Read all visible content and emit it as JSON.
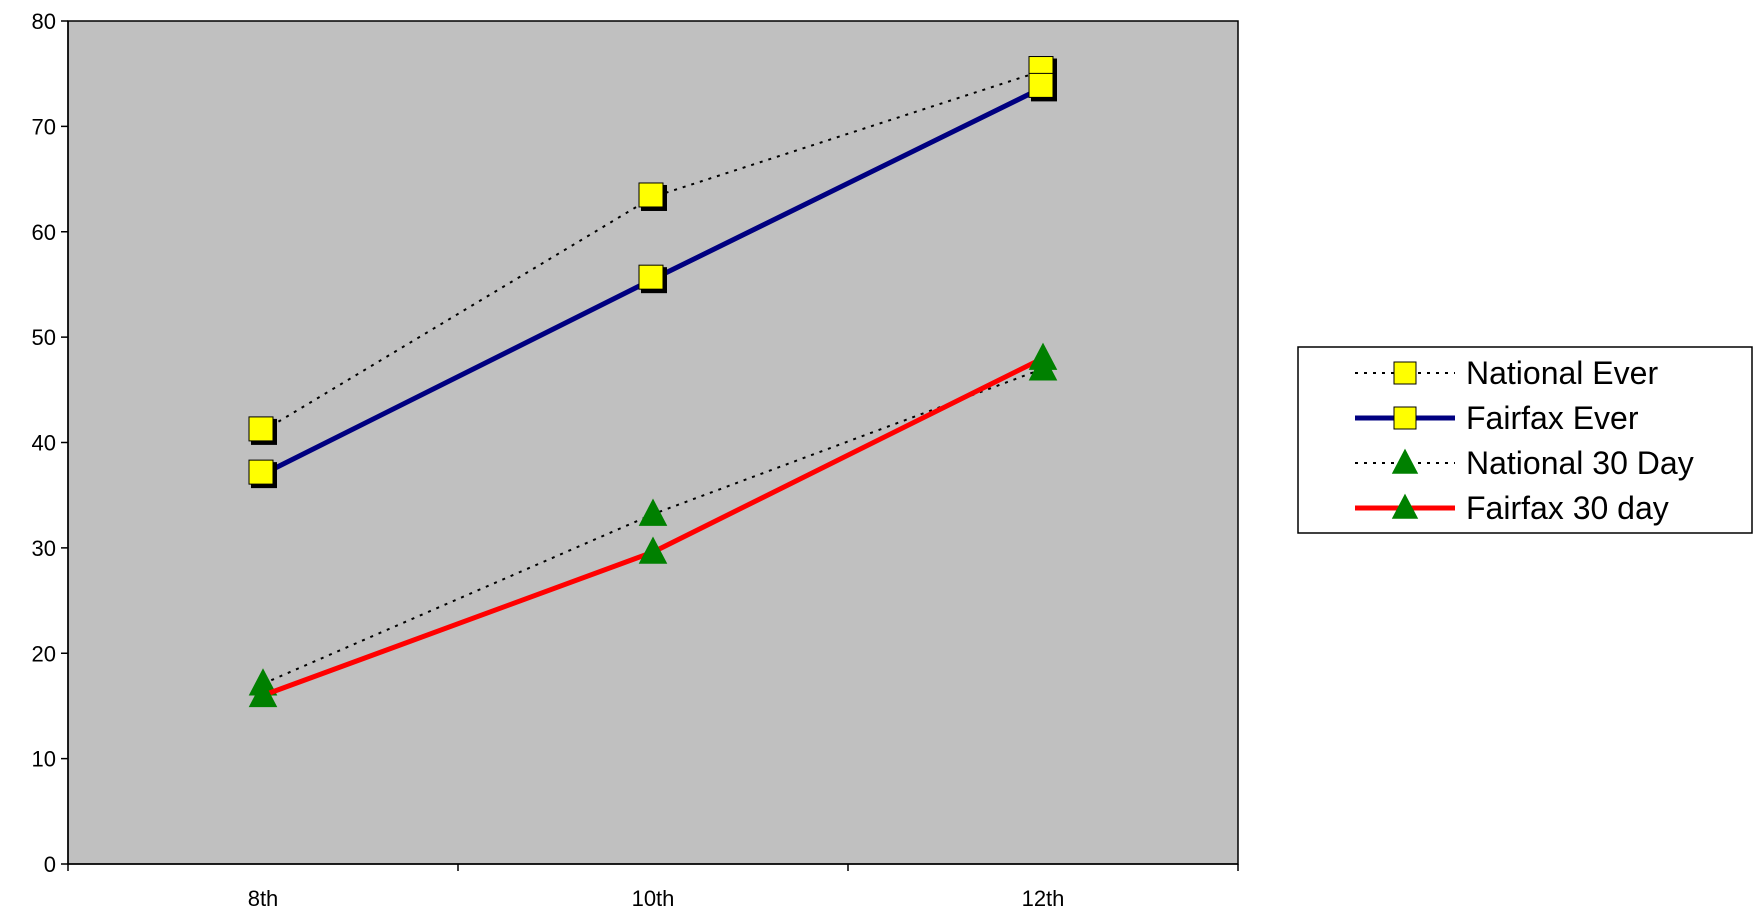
{
  "chart_data": {
    "type": "line",
    "categories": [
      "8th",
      "10th",
      "12th"
    ],
    "ylim": [
      0,
      80
    ],
    "yticks": [
      0,
      10,
      20,
      30,
      40,
      50,
      60,
      70,
      80
    ],
    "grid": false,
    "plot_background": "#c0c0c0",
    "legend_position": "right",
    "series": [
      {
        "name": "National Ever",
        "values": [
          41.1,
          63.3,
          75.3
        ],
        "line_color": "#000000",
        "line_style": "dotted",
        "marker": "square",
        "marker_color": "#ffff00"
      },
      {
        "name": "Fairfax Ever",
        "values": [
          37.0,
          55.5,
          73.7
        ],
        "line_color": "#000080",
        "line_style": "solid",
        "marker": "square",
        "marker_color": "#ffff00"
      },
      {
        "name": "National 30 Day",
        "values": [
          17.1,
          33.2,
          47.0
        ],
        "line_color": "#000000",
        "line_style": "dotted",
        "marker": "triangle",
        "marker_color": "#008000"
      },
      {
        "name": "Fairfax 30 day",
        "values": [
          16.0,
          29.6,
          48.0
        ],
        "line_color": "#ff0000",
        "line_style": "solid",
        "marker": "triangle",
        "marker_color": "#008000"
      }
    ]
  }
}
